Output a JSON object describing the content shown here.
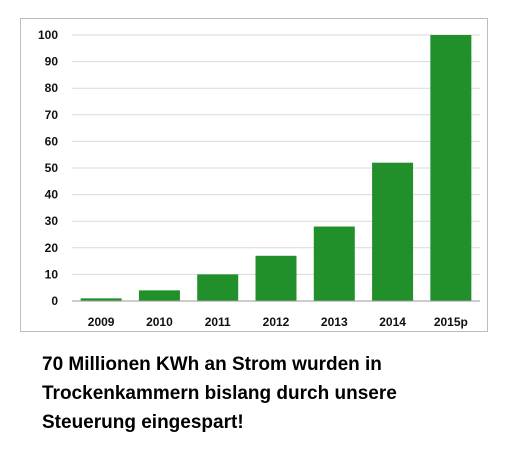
{
  "chart_data": {
    "type": "bar",
    "categories": [
      "2009",
      "2010",
      "2011",
      "2012",
      "2013",
      "2014",
      "2015p"
    ],
    "values": [
      1,
      4,
      10,
      17,
      28,
      52,
      100
    ],
    "ylim": [
      0,
      100
    ],
    "yticks": [
      0,
      10,
      20,
      30,
      40,
      50,
      60,
      70,
      80,
      90,
      100
    ],
    "grid": true,
    "bar_color": "#22902a"
  },
  "caption": "70 Millionen KWh an Strom wurden in Trockenkammern bislang durch unsere Steuerung eingespart!"
}
